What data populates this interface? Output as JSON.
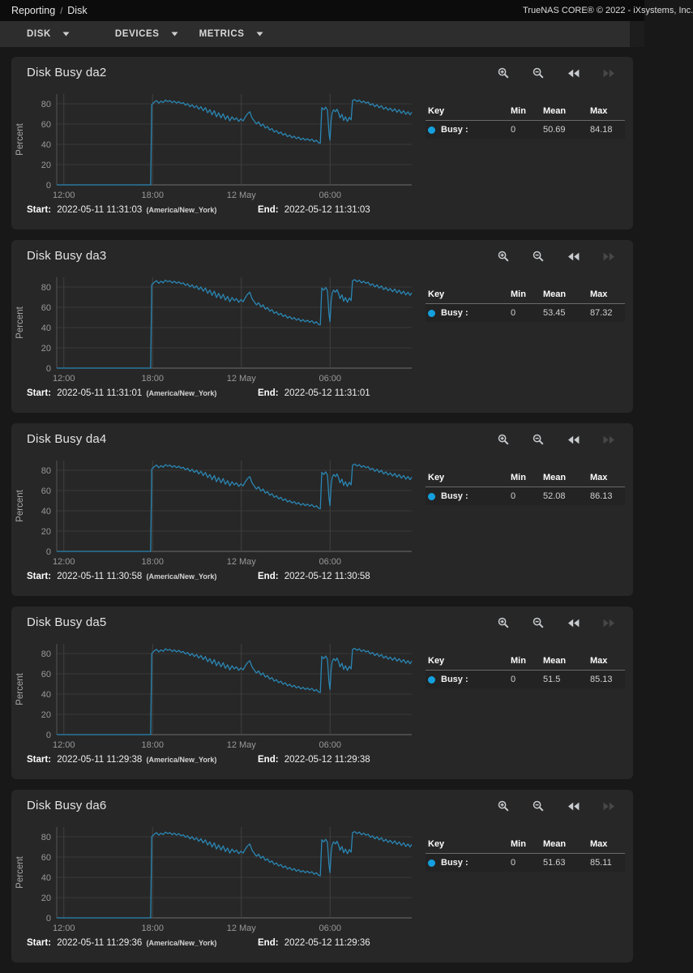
{
  "header": {
    "breadcrumb_root": "Reporting",
    "breadcrumb_sep": "/",
    "breadcrumb_current": "Disk",
    "copyright": "TrueNAS CORE® © 2022 - iXsystems, Inc."
  },
  "toolbar": {
    "buttons": [
      {
        "label": "DISK"
      },
      {
        "label": "DEVICES"
      },
      {
        "label": "METRICS"
      }
    ]
  },
  "legend_headers": {
    "key": "Key",
    "min": "Min",
    "mean": "Mean",
    "max": "Max"
  },
  "labels": {
    "start": "Start:",
    "end": "End:"
  },
  "colors": {
    "line": "#2a86b3",
    "legend_dot": "#14a0de",
    "grid": "#3a3a3a",
    "vgrid": "#414141",
    "axis_left": "#555555",
    "axis_bottom": "#6e6e6e"
  },
  "axis": {
    "y_label": "Percent",
    "y_ticks": [
      0,
      20,
      40,
      60,
      80
    ],
    "ylim": [
      0,
      92
    ],
    "t_max": 24,
    "x_ticks": [
      {
        "t": 0.48,
        "label": "12:00"
      },
      {
        "t": 6.48,
        "label": "18:00"
      },
      {
        "t": 12.48,
        "label": "12 May"
      },
      {
        "t": 18.48,
        "label": "06:00"
      }
    ]
  },
  "base_points": [
    [
      0,
      0
    ],
    [
      6.35,
      0
    ],
    [
      6.42,
      79
    ],
    [
      6.6,
      81.5
    ],
    [
      6.75,
      83
    ],
    [
      6.9,
      80.5
    ],
    [
      7.05,
      82.5
    ],
    [
      7.2,
      81
    ],
    [
      7.35,
      83.5
    ],
    [
      7.5,
      82
    ],
    [
      7.65,
      83
    ],
    [
      7.8,
      81
    ],
    [
      7.95,
      82.5
    ],
    [
      8.1,
      80.5
    ],
    [
      8.25,
      82
    ],
    [
      8.4,
      80
    ],
    [
      8.55,
      81
    ],
    [
      8.7,
      78.5
    ],
    [
      8.85,
      80
    ],
    [
      9,
      77
    ],
    [
      9.15,
      79
    ],
    [
      9.3,
      76
    ],
    [
      9.45,
      78
    ],
    [
      9.6,
      74.5
    ],
    [
      9.75,
      77
    ],
    [
      9.9,
      73
    ],
    [
      10.05,
      76
    ],
    [
      10.2,
      71
    ],
    [
      10.35,
      74
    ],
    [
      10.5,
      69
    ],
    [
      10.65,
      73
    ],
    [
      10.8,
      67
    ],
    [
      10.95,
      71
    ],
    [
      11.1,
      66
    ],
    [
      11.25,
      70
    ],
    [
      11.4,
      64.5
    ],
    [
      11.55,
      68
    ],
    [
      11.7,
      63
    ],
    [
      11.85,
      67
    ],
    [
      12,
      64
    ],
    [
      12.15,
      66
    ],
    [
      12.3,
      62.5
    ],
    [
      12.45,
      65
    ],
    [
      12.6,
      63
    ],
    [
      12.75,
      67
    ],
    [
      12.9,
      70
    ],
    [
      13.05,
      72
    ],
    [
      13.2,
      66
    ],
    [
      13.35,
      63
    ],
    [
      13.5,
      60
    ],
    [
      13.65,
      62
    ],
    [
      13.8,
      58
    ],
    [
      13.95,
      60
    ],
    [
      14.1,
      56
    ],
    [
      14.25,
      57.5
    ],
    [
      14.4,
      54
    ],
    [
      14.55,
      55.5
    ],
    [
      14.7,
      52
    ],
    [
      14.85,
      53.5
    ],
    [
      15,
      50.5
    ],
    [
      15.15,
      52
    ],
    [
      15.3,
      49
    ],
    [
      15.45,
      50.5
    ],
    [
      15.6,
      47.5
    ],
    [
      15.75,
      49
    ],
    [
      15.9,
      46.5
    ],
    [
      16.05,
      48
    ],
    [
      16.2,
      45.5
    ],
    [
      16.35,
      47
    ],
    [
      16.5,
      44.5
    ],
    [
      16.65,
      46
    ],
    [
      16.8,
      44
    ],
    [
      16.95,
      45.5
    ],
    [
      17.1,
      43.5
    ],
    [
      17.25,
      45
    ],
    [
      17.4,
      42.5
    ],
    [
      17.55,
      44
    ],
    [
      17.7,
      41.5
    ],
    [
      17.82,
      41
    ],
    [
      17.92,
      76
    ],
    [
      18.05,
      74
    ],
    [
      18.18,
      76.5
    ],
    [
      18.3,
      73.5
    ],
    [
      18.4,
      52
    ],
    [
      18.47,
      44
    ],
    [
      18.55,
      63
    ],
    [
      18.62,
      71
    ],
    [
      18.72,
      74
    ],
    [
      18.85,
      72
    ],
    [
      18.95,
      74.5
    ],
    [
      19.05,
      71
    ],
    [
      19.15,
      66
    ],
    [
      19.28,
      69.5
    ],
    [
      19.4,
      63.5
    ],
    [
      19.52,
      67
    ],
    [
      19.65,
      62.5
    ],
    [
      19.78,
      66.5
    ],
    [
      19.9,
      64
    ],
    [
      20,
      83
    ],
    [
      20.15,
      84
    ],
    [
      20.3,
      82
    ],
    [
      20.45,
      83.5
    ],
    [
      20.6,
      81
    ],
    [
      20.75,
      82.5
    ],
    [
      20.9,
      80.5
    ],
    [
      21.05,
      81.5
    ],
    [
      21.2,
      78.5
    ],
    [
      21.35,
      80
    ],
    [
      21.5,
      77
    ],
    [
      21.65,
      79
    ],
    [
      21.8,
      76
    ],
    [
      21.95,
      78
    ],
    [
      22.1,
      74.5
    ],
    [
      22.25,
      76.5
    ],
    [
      22.4,
      73.5
    ],
    [
      22.55,
      75.5
    ],
    [
      22.7,
      72.5
    ],
    [
      22.85,
      75
    ],
    [
      23,
      71.5
    ],
    [
      23.15,
      74
    ],
    [
      23.3,
      70.5
    ],
    [
      23.45,
      73
    ],
    [
      23.6,
      69.5
    ],
    [
      23.75,
      72
    ],
    [
      23.88,
      69
    ],
    [
      24,
      71.5
    ]
  ],
  "chart_data": [
    {
      "type": "line",
      "title": "Disk Busy da2",
      "series": [
        {
          "name": "Busy",
          "min": "0",
          "mean": "50.69",
          "max": "84.18"
        }
      ],
      "points_ref": "base_points",
      "amplitude": 1.002,
      "start": "2022-05-11 11:31:03",
      "timezone": "(America/New_York)",
      "end": "2022-05-12 11:31:03",
      "xlabel": "",
      "ylabel": "Percent"
    },
    {
      "type": "line",
      "title": "Disk Busy da3",
      "series": [
        {
          "name": "Busy",
          "min": "0",
          "mean": "53.45",
          "max": "87.32"
        }
      ],
      "points_ref": "base_points",
      "amplitude": 1.0395,
      "start": "2022-05-11 11:31:01",
      "timezone": "(America/New_York)",
      "end": "2022-05-12 11:31:01",
      "xlabel": "",
      "ylabel": "Percent"
    },
    {
      "type": "line",
      "title": "Disk Busy da4",
      "series": [
        {
          "name": "Busy",
          "min": "0",
          "mean": "52.08",
          "max": "86.13"
        }
      ],
      "points_ref": "base_points",
      "amplitude": 1.0254,
      "start": "2022-05-11 11:30:58",
      "timezone": "(America/New_York)",
      "end": "2022-05-12 11:30:58",
      "xlabel": "",
      "ylabel": "Percent"
    },
    {
      "type": "line",
      "title": "Disk Busy da5",
      "series": [
        {
          "name": "Busy",
          "min": "0",
          "mean": "51.5",
          "max": "85.13"
        }
      ],
      "points_ref": "base_points",
      "amplitude": 1.0135,
      "start": "2022-05-11 11:29:38",
      "timezone": "(America/New_York)",
      "end": "2022-05-12 11:29:38",
      "xlabel": "",
      "ylabel": "Percent"
    },
    {
      "type": "line",
      "title": "Disk Busy da6",
      "series": [
        {
          "name": "Busy",
          "min": "0",
          "mean": "51.63",
          "max": "85.11"
        }
      ],
      "points_ref": "base_points",
      "amplitude": 1.0132,
      "start": "2022-05-11 11:29:36",
      "timezone": "(America/New_York)",
      "end": "2022-05-12 11:29:36",
      "xlabel": "",
      "ylabel": "Percent"
    }
  ]
}
